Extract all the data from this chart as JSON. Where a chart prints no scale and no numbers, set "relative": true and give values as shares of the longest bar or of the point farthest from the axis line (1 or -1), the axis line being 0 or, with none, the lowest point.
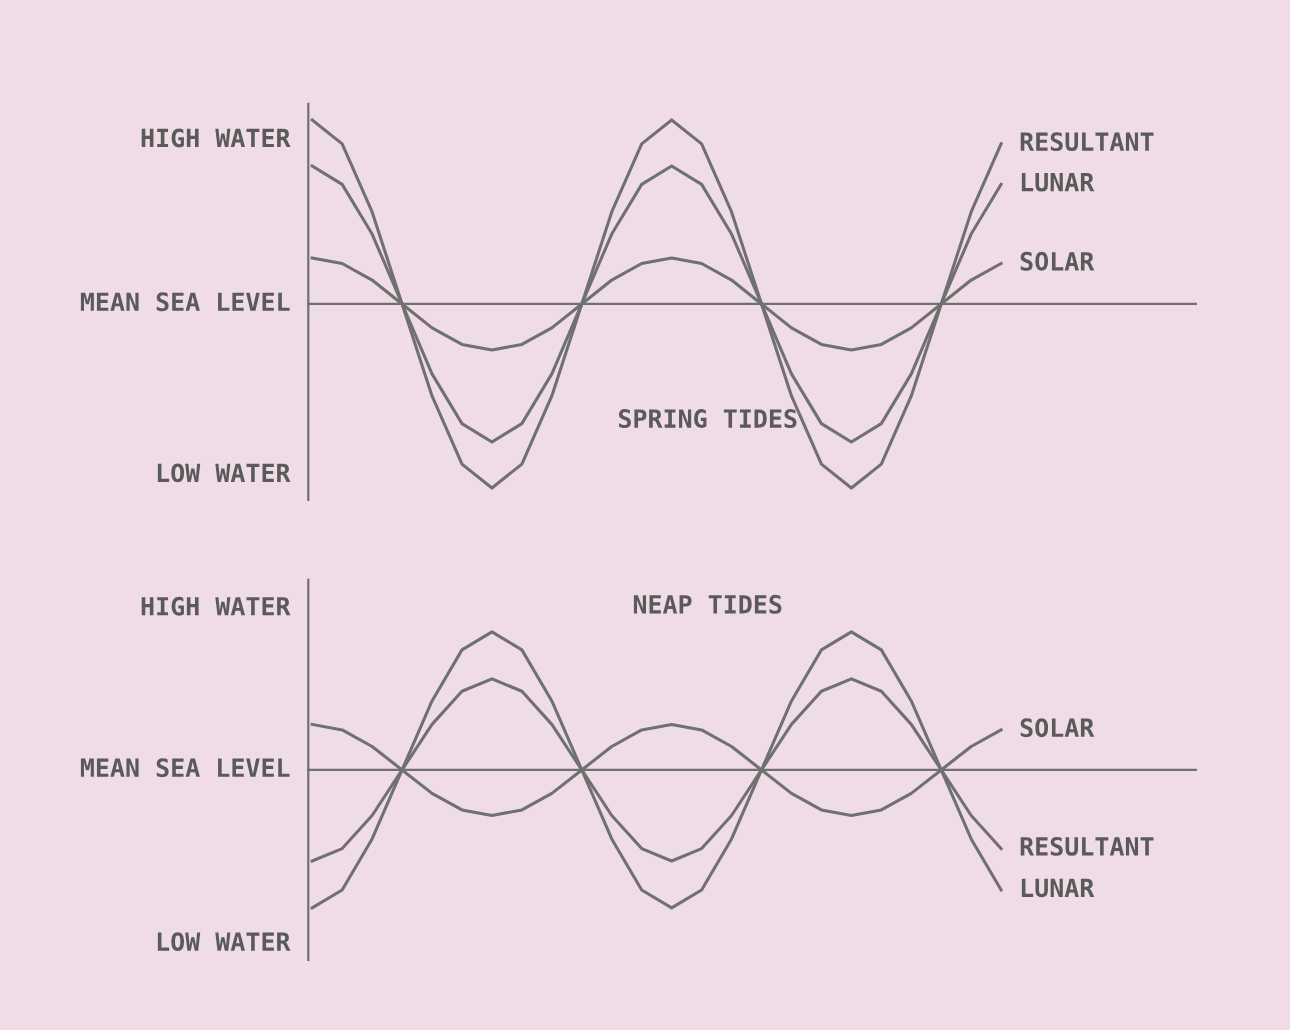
{
  "chart_data": [
    {
      "type": "line",
      "relative": true,
      "annotations": [
        "HIGH WATER",
        "MEAN SEA LEVEL",
        "LOW WATER",
        "SPRING TIDES"
      ],
      "categories": [
        null,
        null,
        null,
        null,
        null,
        null,
        null,
        null,
        null,
        null,
        null,
        null,
        null,
        null,
        null,
        null,
        null,
        null,
        null,
        null,
        null,
        null,
        null,
        null
      ],
      "series": [
        {
          "name": "RESULTANT",
          "color": "#707070",
          "values": [
            1,
            0.87,
            0.5,
            0,
            -0.5,
            -0.87,
            -1,
            -0.87,
            -0.5,
            0,
            0.5,
            0.87,
            1,
            0.87,
            0.5,
            0,
            -0.5,
            -0.87,
            -1,
            -0.87,
            -0.5,
            0,
            0.5,
            0.87
          ]
        },
        {
          "name": "LUNAR",
          "color": "#707070",
          "values": [
            0.75,
            0.65,
            0.38,
            0,
            -0.38,
            -0.65,
            -0.75,
            -0.65,
            -0.38,
            0,
            0.38,
            0.65,
            0.75,
            0.65,
            0.38,
            0,
            -0.38,
            -0.65,
            -0.75,
            -0.65,
            -0.38,
            0,
            0.38,
            0.65
          ]
        },
        {
          "name": "SOLAR",
          "color": "#707070",
          "values": [
            0.25,
            0.22,
            0.13,
            0,
            -0.13,
            -0.22,
            -0.25,
            -0.22,
            -0.13,
            0,
            0.13,
            0.22,
            0.25,
            0.22,
            0.13,
            0,
            -0.13,
            -0.22,
            -0.25,
            -0.22,
            -0.13,
            0,
            0.13,
            0.22
          ]
        }
      ]
    },
    {
      "type": "line",
      "relative": true,
      "annotations": [
        "HIGH WATER",
        "MEAN SEA LEVEL",
        "LOW WATER",
        "NEAP TIDES"
      ],
      "categories": [
        null,
        null,
        null,
        null,
        null,
        null,
        null,
        null,
        null,
        null,
        null,
        null,
        null,
        null,
        null,
        null,
        null,
        null,
        null,
        null,
        null,
        null,
        null,
        null
      ],
      "series": [
        {
          "name": "SOLAR",
          "color": "#707070",
          "values": [
            0.33,
            0.29,
            0.17,
            0,
            -0.17,
            -0.29,
            -0.33,
            -0.29,
            -0.17,
            0,
            0.17,
            0.29,
            0.33,
            0.29,
            0.17,
            0,
            -0.17,
            -0.29,
            -0.33,
            -0.29,
            -0.17,
            0,
            0.17,
            0.29
          ]
        },
        {
          "name": "RESULTANT",
          "color": "#707070",
          "values": [
            -0.66,
            -0.57,
            -0.33,
            0,
            0.33,
            0.57,
            0.66,
            0.57,
            0.33,
            0,
            -0.33,
            -0.57,
            -0.66,
            -0.57,
            -0.33,
            0,
            0.33,
            0.57,
            0.66,
            0.57,
            0.33,
            0,
            -0.33,
            -0.57
          ]
        },
        {
          "name": "LUNAR",
          "color": "#707070",
          "values": [
            -1,
            -0.87,
            -0.5,
            0,
            0.5,
            0.87,
            1,
            0.87,
            0.5,
            0,
            -0.5,
            -0.87,
            -1,
            -0.87,
            -0.5,
            0,
            0.5,
            0.87,
            1,
            0.87,
            0.5,
            0,
            -0.5,
            -0.87
          ]
        }
      ]
    }
  ]
}
